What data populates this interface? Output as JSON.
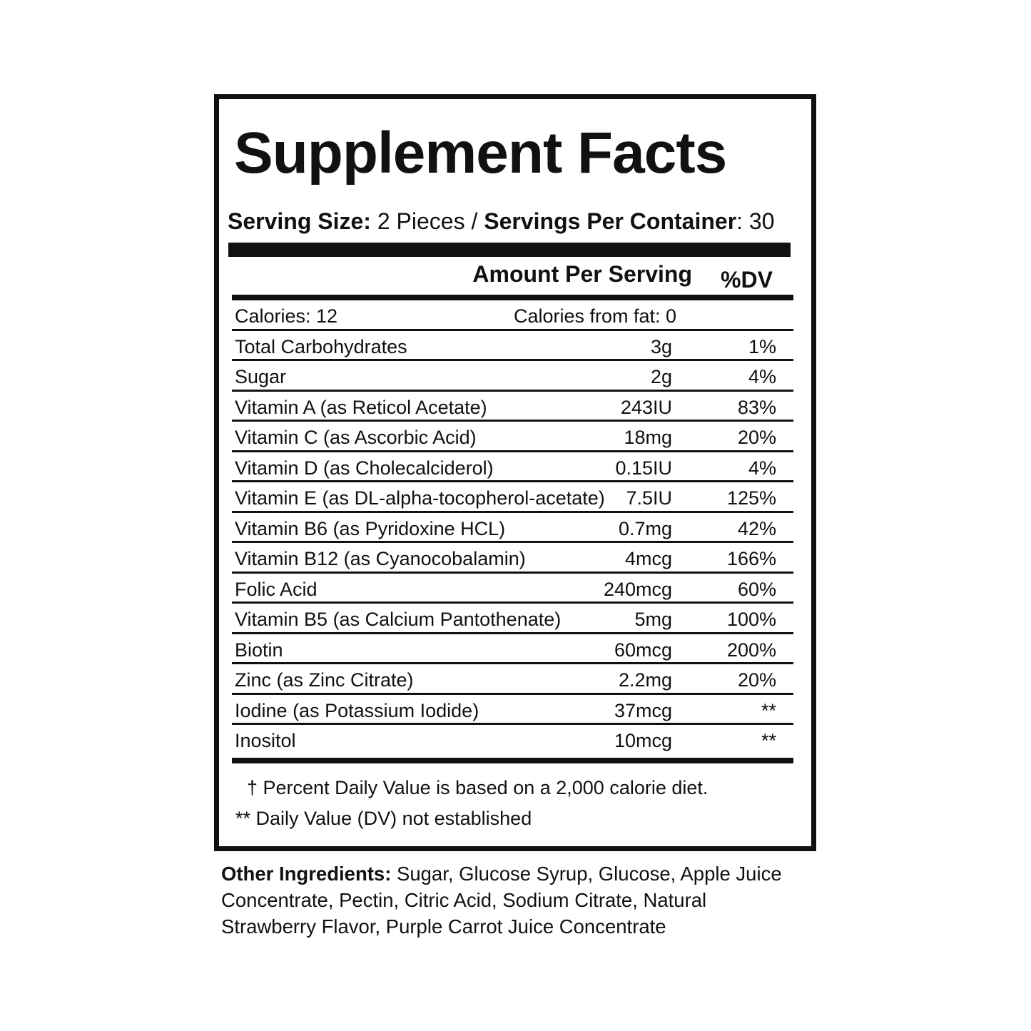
{
  "title": "Supplement Facts",
  "serving": {
    "size_label": "Serving Size:",
    "size_value": "2 Pieces /",
    "container_label": "Servings Per Container",
    "container_value": ": 30"
  },
  "header": {
    "amount": "Amount Per Serving",
    "dv": "%DV"
  },
  "calories": {
    "total": "Calories: 12",
    "from_fat": "Calories from fat: 0"
  },
  "rows": [
    [
      "Total Carbohydrates",
      "3g",
      "1%"
    ],
    [
      "Sugar",
      "2g",
      "4%"
    ],
    [
      "Vitamin A (as Reticol Acetate)",
      "243IU",
      "83%"
    ],
    [
      "Vitamin C (as Ascorbic Acid)",
      "18mg",
      "20%"
    ],
    [
      "Vitamin D (as Cholecalciderol)",
      "0.15IU",
      "4%"
    ],
    [
      "Vitamin E (as DL-alpha-tocopherol-acetate)",
      "7.5IU",
      "125%"
    ],
    [
      "Vitamin B6 (as Pyridoxine HCL)",
      "0.7mg",
      "42%"
    ],
    [
      "Vitamin B12 (as Cyanocobalamin)",
      "4mcg",
      "166%"
    ],
    [
      "Folic Acid",
      "240mcg",
      "60%"
    ],
    [
      "Vitamin B5 (as Calcium Pantothenate)",
      "5mg",
      "100%"
    ],
    [
      "Biotin",
      "60mcg",
      "200%"
    ],
    [
      "Zinc (as Zinc Citrate)",
      "2.2mg",
      "20%"
    ],
    [
      "Iodine (as Potassium Iodide)",
      "37mcg",
      "**"
    ],
    [
      "Inositol",
      "10mcg",
      "**"
    ]
  ],
  "footnotes": [
    "† Percent Daily Value is based on a 2,000 calorie diet.",
    "** Daily Value (DV) not established"
  ],
  "other_ingredients": {
    "label": "Other Ingredients:",
    "text": "Sugar, Glucose Syrup, Glucose, Apple Juice Concentrate, Pectin, Citric Acid, Sodium Citrate, Natural Strawberry Flavor, Purple Carrot Juice Concentrate"
  }
}
